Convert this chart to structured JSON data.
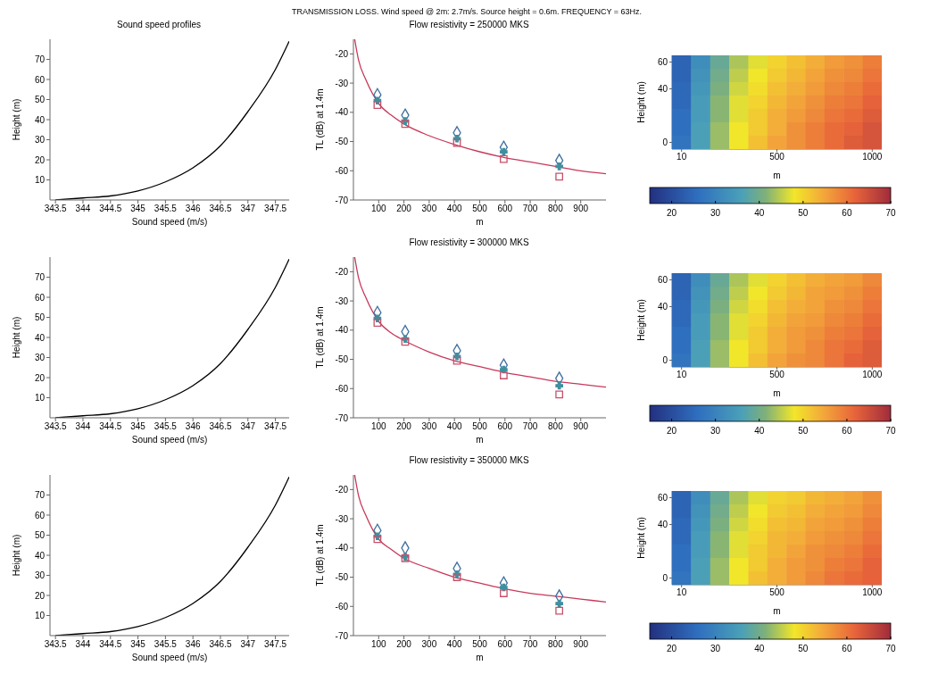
{
  "chart_data": [
    {
      "type": "line",
      "title": "Sound speed profiles",
      "annotations": [
        "TRANSMISSION LOSS. Wind speed @ 2m: 2.7m/s. Source height = 0.6m. FREQUENCY = 63Hz."
      ],
      "xlabel": "Sound speed (m/s)",
      "ylabel": "Height (m)",
      "x": [
        343.5,
        344,
        344.5,
        345,
        345.5,
        346,
        346.5,
        347,
        347.5,
        347.75
      ],
      "values": [
        0,
        1,
        2,
        4.5,
        9,
        16,
        27,
        44,
        65,
        79
      ],
      "color": "#000000",
      "xlim": [
        343.4,
        347.75
      ],
      "xticks": [
        343.5,
        344,
        344.5,
        345,
        345.5,
        346,
        346.5,
        347,
        347.5
      ],
      "ylim": [
        0,
        80
      ],
      "yticks": [
        10,
        20,
        30,
        40,
        50,
        60,
        70
      ]
    },
    {
      "type": "line",
      "title": "Flow resistivity = 250000 MKS",
      "xlabel": "m",
      "ylabel": "TL (dB) at 1.4m",
      "xlim": [
        0,
        1000
      ],
      "xticks": [
        100,
        200,
        300,
        400,
        500,
        600,
        700,
        800,
        900
      ],
      "ylim": [
        -70,
        -15
      ],
      "yticks": [
        -70,
        -60,
        -50,
        -40,
        -30,
        -20
      ],
      "series": [
        {
          "type": "line",
          "color": "#c8385a",
          "x": [
            5,
            20,
            50,
            100,
            150,
            200,
            300,
            400,
            500,
            600,
            700,
            800,
            900,
            1000
          ],
          "values": [
            -15,
            -22,
            -29,
            -37,
            -41,
            -44,
            -48,
            -51,
            -53.5,
            -55.5,
            -57,
            -58.5,
            -60,
            -61
          ]
        },
        {
          "type": "scatter",
          "marker": "diamond",
          "color": "#3f6f9f",
          "x": [
            95,
            205,
            410,
            595,
            815
          ],
          "values": [
            -34,
            -41,
            -47,
            -52,
            -56.5
          ]
        },
        {
          "type": "scatter",
          "marker": "cross",
          "color": "#3f8f9f",
          "x": [
            95,
            205,
            410,
            595,
            815
          ],
          "values": [
            -36,
            -43,
            -49,
            -53.5,
            -58.5
          ]
        },
        {
          "type": "scatter",
          "marker": "square",
          "color": "#c8506a",
          "x": [
            95,
            205,
            410,
            595,
            815
          ],
          "values": [
            -37.5,
            -44,
            -50.5,
            -56,
            -62
          ]
        }
      ]
    },
    {
      "type": "heatmap",
      "xlabel": "m",
      "ylabel": "Height (m)",
      "clim": [
        15,
        70
      ],
      "cticks": [
        20,
        30,
        40,
        50,
        60,
        70
      ],
      "categories": [
        "10",
        null,
        null,
        null,
        null,
        "500",
        null,
        null,
        null,
        null,
        "1000"
      ],
      "y_categories": [
        "60",
        null,
        "40",
        null,
        null,
        null,
        "0"
      ],
      "cells": [
        [
          24,
          32,
          39,
          44,
          47,
          50,
          52,
          54,
          56,
          57,
          59
        ],
        [
          24,
          33,
          40,
          45,
          48,
          51,
          53,
          55,
          57,
          58,
          60
        ],
        [
          25,
          34,
          41,
          46,
          49,
          52,
          54,
          56,
          58,
          59,
          61
        ],
        [
          25,
          35,
          42,
          47,
          50,
          53,
          55,
          57,
          59,
          60,
          62
        ],
        [
          26,
          35,
          42,
          47,
          51,
          54,
          56,
          58,
          60,
          61,
          63
        ],
        [
          26,
          36,
          43,
          48,
          51,
          54,
          57,
          59,
          61,
          62,
          64
        ],
        [
          27,
          36,
          43,
          48,
          52,
          55,
          57,
          59,
          61,
          63,
          64
        ]
      ]
    },
    {
      "type": "line",
      "xlabel": "Sound speed (m/s)",
      "ylabel": "Height (m)",
      "x": [
        343.5,
        344,
        344.5,
        345,
        345.5,
        346,
        346.5,
        347,
        347.5,
        347.75
      ],
      "values": [
        0,
        1,
        2,
        4.5,
        9,
        16,
        27,
        44,
        65,
        79
      ],
      "color": "#000000",
      "xlim": [
        343.4,
        347.75
      ],
      "xticks": [
        343.5,
        344,
        344.5,
        345,
        345.5,
        346,
        346.5,
        347,
        347.5
      ],
      "ylim": [
        0,
        80
      ],
      "yticks": [
        10,
        20,
        30,
        40,
        50,
        60,
        70
      ]
    },
    {
      "type": "line",
      "title": "Flow resistivity = 300000 MKS",
      "xlabel": "m",
      "ylabel": "TL (dB) at 1.4m",
      "xlim": [
        0,
        1000
      ],
      "xticks": [
        100,
        200,
        300,
        400,
        500,
        600,
        700,
        800,
        900
      ],
      "ylim": [
        -70,
        -15
      ],
      "yticks": [
        -70,
        -60,
        -50,
        -40,
        -30,
        -20
      ],
      "series": [
        {
          "type": "line",
          "color": "#c8385a",
          "x": [
            5,
            20,
            50,
            100,
            150,
            200,
            300,
            400,
            500,
            600,
            700,
            800,
            900,
            1000
          ],
          "values": [
            -15,
            -22,
            -29,
            -37,
            -41,
            -43.5,
            -47.5,
            -50.5,
            -52.5,
            -54.5,
            -56,
            -57.5,
            -58.5,
            -59.5
          ]
        },
        {
          "type": "scatter",
          "marker": "diamond",
          "color": "#3f6f9f",
          "x": [
            95,
            205,
            410,
            595,
            815
          ],
          "values": [
            -34,
            -40.5,
            -47,
            -52,
            -56.5
          ]
        },
        {
          "type": "scatter",
          "marker": "cross",
          "color": "#3f8f9f",
          "x": [
            95,
            205,
            410,
            595,
            815
          ],
          "values": [
            -36,
            -43,
            -49,
            -53.5,
            -59
          ]
        },
        {
          "type": "scatter",
          "marker": "square",
          "color": "#c8506a",
          "x": [
            95,
            205,
            410,
            595,
            815
          ],
          "values": [
            -37.5,
            -44,
            -50.5,
            -55.5,
            -62
          ]
        }
      ]
    },
    {
      "type": "heatmap",
      "xlabel": "m",
      "ylabel": "Height (m)",
      "clim": [
        15,
        70
      ],
      "cticks": [
        20,
        30,
        40,
        50,
        60,
        70
      ],
      "categories": [
        "10",
        null,
        null,
        null,
        null,
        "500",
        null,
        null,
        null,
        null,
        "1000"
      ],
      "y_categories": [
        "60",
        null,
        "40",
        null,
        null,
        null,
        "0"
      ],
      "cells": [
        [
          24,
          32,
          39,
          44,
          47,
          50,
          52,
          54,
          55,
          56,
          58
        ],
        [
          24,
          33,
          40,
          45,
          48,
          51,
          53,
          55,
          56,
          57,
          59
        ],
        [
          25,
          34,
          41,
          46,
          49,
          52,
          54,
          55,
          57,
          58,
          60
        ],
        [
          25,
          35,
          42,
          47,
          50,
          53,
          55,
          56,
          58,
          59,
          61
        ],
        [
          26,
          35,
          42,
          47,
          51,
          54,
          56,
          57,
          59,
          60,
          62
        ],
        [
          26,
          36,
          43,
          48,
          51,
          54,
          56,
          58,
          60,
          61,
          63
        ],
        [
          27,
          36,
          43,
          48,
          52,
          55,
          57,
          58,
          60,
          62,
          63
        ]
      ]
    },
    {
      "type": "line",
      "xlabel": "Sound speed (m/s)",
      "ylabel": "Height (m)",
      "x": [
        343.5,
        344,
        344.5,
        345,
        345.5,
        346,
        346.5,
        347,
        347.5,
        347.75
      ],
      "values": [
        0,
        1,
        2,
        4.5,
        9,
        16,
        27,
        44,
        65,
        79
      ],
      "color": "#000000",
      "xlim": [
        343.4,
        347.75
      ],
      "xticks": [
        343.5,
        344,
        344.5,
        345,
        345.5,
        346,
        346.5,
        347,
        347.5
      ],
      "ylim": [
        0,
        80
      ],
      "yticks": [
        10,
        20,
        30,
        40,
        50,
        60,
        70
      ]
    },
    {
      "type": "line",
      "title": "Flow resistivity = 350000 MKS",
      "xlabel": "m",
      "ylabel": "TL (dB) at 1.4m",
      "xlim": [
        0,
        1000
      ],
      "xticks": [
        100,
        200,
        300,
        400,
        500,
        600,
        700,
        800,
        900
      ],
      "ylim": [
        -70,
        -15
      ],
      "yticks": [
        -70,
        -60,
        -50,
        -40,
        -30,
        -20
      ],
      "series": [
        {
          "type": "line",
          "color": "#c8385a",
          "x": [
            5,
            20,
            50,
            100,
            150,
            200,
            300,
            400,
            500,
            600,
            700,
            800,
            900,
            1000
          ],
          "values": [
            -15,
            -22,
            -29,
            -37,
            -40.5,
            -43.5,
            -47,
            -50,
            -52,
            -54,
            -55.5,
            -56.5,
            -57.5,
            -58.5
          ]
        },
        {
          "type": "scatter",
          "marker": "diamond",
          "color": "#3f6f9f",
          "x": [
            95,
            205,
            410,
            595,
            815
          ],
          "values": [
            -34,
            -40,
            -47,
            -52,
            -56.5
          ]
        },
        {
          "type": "scatter",
          "marker": "cross",
          "color": "#3f8f9f",
          "x": [
            95,
            205,
            410,
            595,
            815
          ],
          "values": [
            -36,
            -43,
            -49,
            -53.5,
            -59
          ]
        },
        {
          "type": "scatter",
          "marker": "square",
          "color": "#c8506a",
          "x": [
            95,
            205,
            410,
            595,
            815
          ],
          "values": [
            -37,
            -43.5,
            -50,
            -55.5,
            -61.5
          ]
        }
      ]
    },
    {
      "type": "heatmap",
      "xlabel": "m",
      "ylabel": "Height (m)",
      "clim": [
        15,
        70
      ],
      "cticks": [
        20,
        30,
        40,
        50,
        60,
        70
      ],
      "categories": [
        "10",
        null,
        null,
        null,
        null,
        "500",
        null,
        null,
        null,
        null,
        "1000"
      ],
      "y_categories": [
        "60",
        null,
        "40",
        null,
        null,
        null,
        "0"
      ],
      "cells": [
        [
          24,
          32,
          39,
          44,
          47,
          50,
          51,
          53,
          54,
          55,
          57
        ],
        [
          24,
          33,
          40,
          45,
          48,
          51,
          52,
          54,
          55,
          56,
          58
        ],
        [
          25,
          34,
          41,
          46,
          49,
          52,
          53,
          55,
          56,
          57,
          59
        ],
        [
          25,
          35,
          42,
          47,
          50,
          53,
          54,
          56,
          57,
          58,
          60
        ],
        [
          26,
          35,
          42,
          47,
          51,
          53,
          55,
          57,
          58,
          59,
          61
        ],
        [
          26,
          36,
          43,
          48,
          51,
          54,
          56,
          57,
          59,
          60,
          62
        ],
        [
          27,
          36,
          43,
          48,
          52,
          54,
          56,
          58,
          60,
          61,
          62
        ]
      ]
    }
  ]
}
